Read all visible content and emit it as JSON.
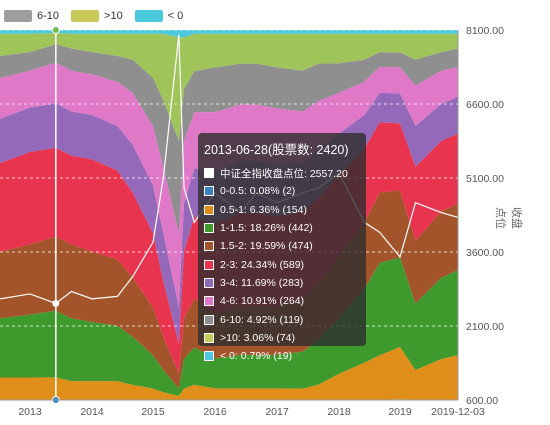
{
  "chart_data": {
    "type": "area",
    "stacking": "percent",
    "x_ticks": [
      "2013",
      "2014",
      "2015",
      "2016",
      "2017",
      "2018",
      "2019",
      "2019-12-03"
    ],
    "y_right_ticks": [
      "8100.00",
      "6600.00",
      "5100.00",
      "3600.00",
      "2100.00",
      "600.00"
    ],
    "ylabel_right": "收盘点位",
    "ylim": [
      600,
      8100
    ],
    "legend": [
      {
        "name": "6-10",
        "color": "#9e9e9e"
      },
      {
        "name": ">10",
        "color": "#c9c95a"
      },
      {
        "name": "< 0",
        "color": "#4cc9dd"
      }
    ],
    "x": [
      "2012-09",
      "2013-01",
      "2013-06",
      "2013-09",
      "2014-01",
      "2014-06",
      "2014-09",
      "2015-01",
      "2015-03",
      "2015-06",
      "2015-07",
      "2015-09",
      "2016-01",
      "2016-06",
      "2016-09",
      "2017-01",
      "2017-06",
      "2017-09",
      "2018-01",
      "2018-06",
      "2018-09",
      "2019-01",
      "2019-04",
      "2019-09",
      "2019-12"
    ],
    "series": [
      {
        "name": "0-0.5",
        "color": "#3a82c4",
        "values": [
          0.1,
          0.1,
          0.1,
          0.1,
          0.1,
          0.1,
          0.1,
          0.1,
          0.1,
          0.1,
          0.1,
          0.1,
          0.1,
          0.1,
          0.1,
          0.1,
          0.1,
          0.1,
          0.1,
          0.1,
          0.1,
          0.2,
          0.1,
          0.1,
          0.1
        ]
      },
      {
        "name": "0.5-1",
        "color": "#e08e1a",
        "values": [
          6,
          6,
          6,
          5,
          5,
          5,
          4,
          3,
          2,
          1,
          3,
          4,
          3,
          3,
          3,
          3,
          3,
          4,
          7,
          10,
          12,
          14,
          8,
          11,
          12
        ]
      },
      {
        "name": "1-1.5",
        "color": "#3f9a2e",
        "values": [
          16,
          17,
          18,
          17,
          16,
          15,
          13,
          9,
          6,
          2,
          8,
          10,
          8,
          9,
          9,
          9,
          10,
          12,
          15,
          20,
          25,
          24,
          18,
          22,
          23
        ]
      },
      {
        "name": "1.5-2",
        "color": "#a4542a",
        "values": [
          18,
          19,
          20,
          20,
          19,
          18,
          16,
          13,
          9,
          4,
          11,
          13,
          12,
          13,
          13,
          13,
          14,
          15,
          17,
          18,
          19,
          18,
          17,
          18,
          18
        ]
      },
      {
        "name": "2-3",
        "color": "#e8344f",
        "values": [
          24,
          25,
          24,
          24,
          25,
          24,
          23,
          20,
          15,
          8,
          18,
          22,
          24,
          25,
          25,
          24,
          24,
          23,
          22,
          20,
          19,
          18,
          20,
          19,
          19
        ]
      },
      {
        "name": "3-4",
        "color": "#9569b9",
        "values": [
          12,
          12,
          12,
          12,
          12,
          12,
          13,
          13,
          13,
          10,
          13,
          13,
          14,
          14,
          14,
          14,
          13,
          13,
          11,
          9,
          8,
          8,
          11,
          10,
          10
        ]
      },
      {
        "name": "4-6",
        "color": "#df78c6",
        "values": [
          11,
          10,
          11,
          11,
          11,
          12,
          14,
          16,
          18,
          20,
          17,
          15,
          16,
          15,
          15,
          15,
          14,
          13,
          11,
          9,
          7,
          7,
          11,
          9,
          8
        ]
      },
      {
        "name": "6-10",
        "color": "#8f8f8f",
        "values": [
          6,
          5,
          5,
          6,
          6,
          7,
          9,
          13,
          18,
          25,
          14,
          11,
          12,
          11,
          11,
          11,
          11,
          10,
          8,
          6,
          4,
          4,
          7,
          5,
          5
        ]
      },
      {
        "name": ">10",
        "color": "#9fc45a",
        "values": [
          6,
          5,
          3,
          4,
          5,
          6,
          7,
          12,
          18,
          28,
          14,
          10,
          9,
          8,
          8,
          9,
          10,
          8,
          8,
          7,
          5,
          5,
          7,
          5,
          4
        ]
      },
      {
        "name": "< 0",
        "color": "#4cc9dd",
        "values": [
          1,
          1,
          0.8,
          1,
          1,
          1,
          1,
          1,
          1,
          2,
          2,
          1,
          1,
          1,
          1,
          1,
          1,
          1,
          1,
          1,
          1,
          1,
          1,
          1,
          1
        ]
      }
    ],
    "index_line": {
      "name": "中证全指收盘点位",
      "values": [
        2650,
        2750,
        2557,
        2800,
        2650,
        2700,
        3100,
        3800,
        5100,
        8000,
        4900,
        4200,
        4800,
        4400,
        4800,
        4600,
        4800,
        4900,
        5200,
        4200,
        4000,
        3500,
        4600,
        4400,
        4300
      ]
    },
    "tooltip": {
      "title": "2013-06-28(股票数: 2420)",
      "rows": [
        {
          "color": "#ffffff",
          "text": "中证全指收盘点位: 2557.20"
        },
        {
          "color": "#3a82c4",
          "text": "0-0.5: 0.08% (2)"
        },
        {
          "color": "#e08e1a",
          "text": "0.5-1: 6.36% (154)"
        },
        {
          "color": "#3f9a2e",
          "text": "1-1.5: 18.26% (442)"
        },
        {
          "color": "#a4542a",
          "text": "1.5-2: 19.59% (474)"
        },
        {
          "color": "#e8344f",
          "text": "2-3: 24.34% (589)"
        },
        {
          "color": "#9569b9",
          "text": "3-4: 11.69% (283)"
        },
        {
          "color": "#df78c6",
          "text": "4-6: 10.91% (264)"
        },
        {
          "color": "#8f8f8f",
          "text": "6-10: 4.92% (119)"
        },
        {
          "color": "#c9c95a",
          "text": ">10: 3.06% (74)"
        },
        {
          "color": "#4cc9dd",
          "text": "< 0: 0.79% (19)"
        }
      ]
    },
    "crosshair_date": "2013-06",
    "grid": true
  }
}
